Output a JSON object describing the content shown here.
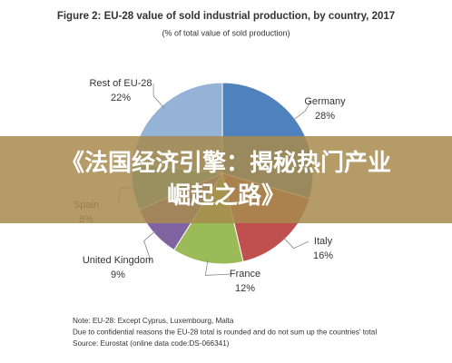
{
  "chart_data": {
    "type": "pie",
    "title": "Figure 2: EU-28 value of sold industrial production, by country, 2017",
    "subtitle": "(% of total value of sold production)",
    "categories": [
      "Germany",
      "Italy",
      "France",
      "United Kingdom",
      "Spain",
      "Rest of EU-28"
    ],
    "values": [
      28,
      16,
      12,
      9,
      8,
      22
    ],
    "value_labels": [
      "28%",
      "16%",
      "12%",
      "9%",
      "8%",
      "22%"
    ],
    "colors": [
      "#4f81bd",
      "#c0504d",
      "#9bbb59",
      "#8064a2",
      "#4bacc6",
      "#95b3d7"
    ],
    "notes": [
      "Note: EU-28: Except Cyprus, Luxembourg, Malta",
      "Due to confidential reasons the EU-28 total is rounded and do not sum up the countries' total",
      "Source: Eurostat (online data code:DS-066341)"
    ]
  },
  "banner": "《法国经济引擎：揭秘热门产业崛起之路》"
}
